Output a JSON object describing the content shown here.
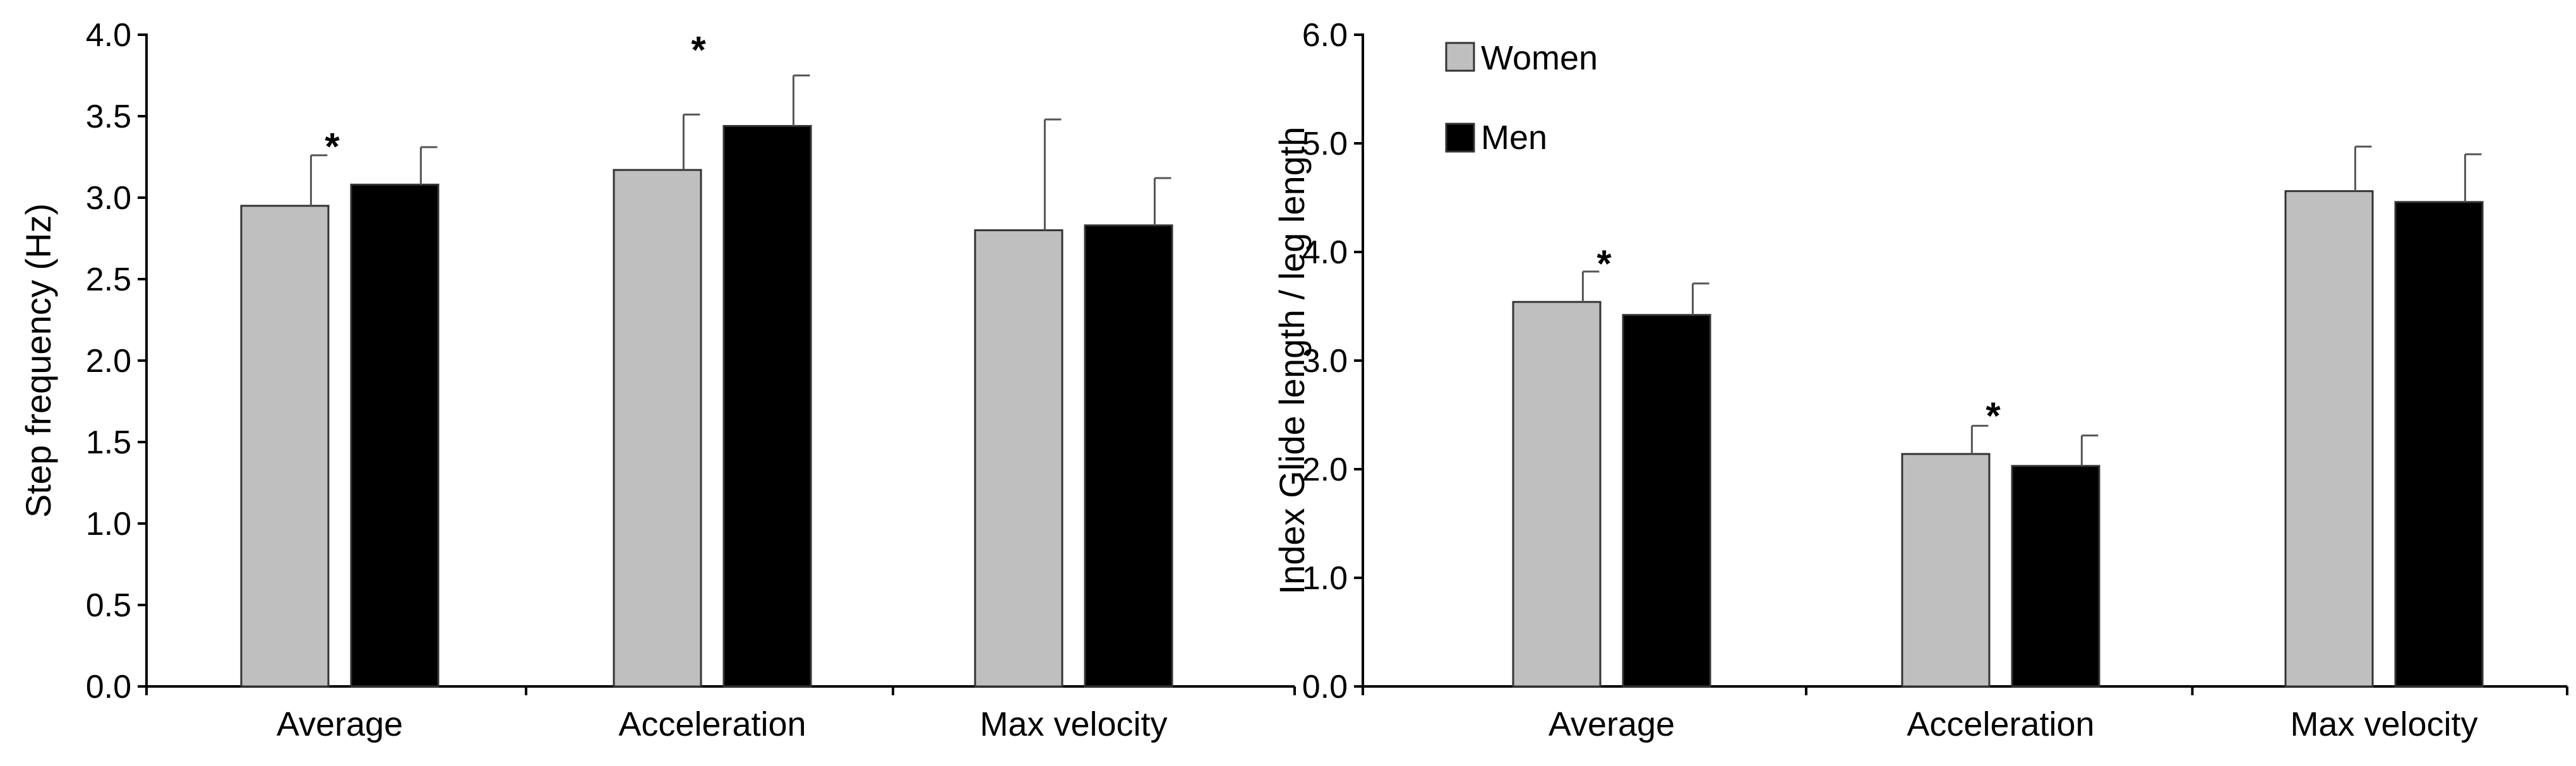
{
  "colors": {
    "women": "#bfbfbf",
    "men": "#000000",
    "error": "#555555"
  },
  "legend": [
    {
      "key": "women",
      "label": "Women"
    },
    {
      "key": "men",
      "label": "Men"
    }
  ],
  "chart_data": [
    {
      "type": "bar",
      "title": "",
      "xlabel": "",
      "ylabel": "Step frequency (Hz)",
      "ylim": [
        0,
        4.0
      ],
      "yticks": [
        "0.0",
        "0.5",
        "1.0",
        "1.5",
        "2.0",
        "2.5",
        "3.0",
        "3.5",
        "4.0"
      ],
      "categories": [
        "Average",
        "Acceleration",
        "Max velocity"
      ],
      "series": [
        {
          "name": "Women",
          "values": [
            2.95,
            3.17,
            2.8
          ],
          "errors": [
            0.31,
            0.34,
            0.68
          ]
        },
        {
          "name": "Men",
          "values": [
            3.08,
            3.44,
            2.83
          ],
          "errors": [
            0.23,
            0.31,
            0.29
          ]
        }
      ],
      "significance": [
        {
          "category_index": 0,
          "label": "*"
        },
        {
          "category_index": 1,
          "label": "*"
        }
      ],
      "grid": false
    },
    {
      "type": "bar",
      "title": "",
      "xlabel": "",
      "ylabel": "Index Glide length / leg length",
      "ylim": [
        0,
        6.0
      ],
      "yticks": [
        "0.0",
        "1.0",
        "2.0",
        "3.0",
        "4.0",
        "5.0",
        "6.0"
      ],
      "categories": [
        "Average",
        "Acceleration",
        "Max velocity"
      ],
      "series": [
        {
          "name": "Women",
          "values": [
            3.54,
            2.14,
            4.56
          ],
          "errors": [
            0.28,
            0.26,
            0.41
          ]
        },
        {
          "name": "Men",
          "values": [
            3.42,
            2.03,
            4.46
          ],
          "errors": [
            0.29,
            0.28,
            0.44
          ]
        }
      ],
      "significance": [
        {
          "category_index": 0,
          "label": "*"
        },
        {
          "category_index": 1,
          "label": "*"
        }
      ],
      "legend_position": "top-left",
      "grid": false
    }
  ]
}
